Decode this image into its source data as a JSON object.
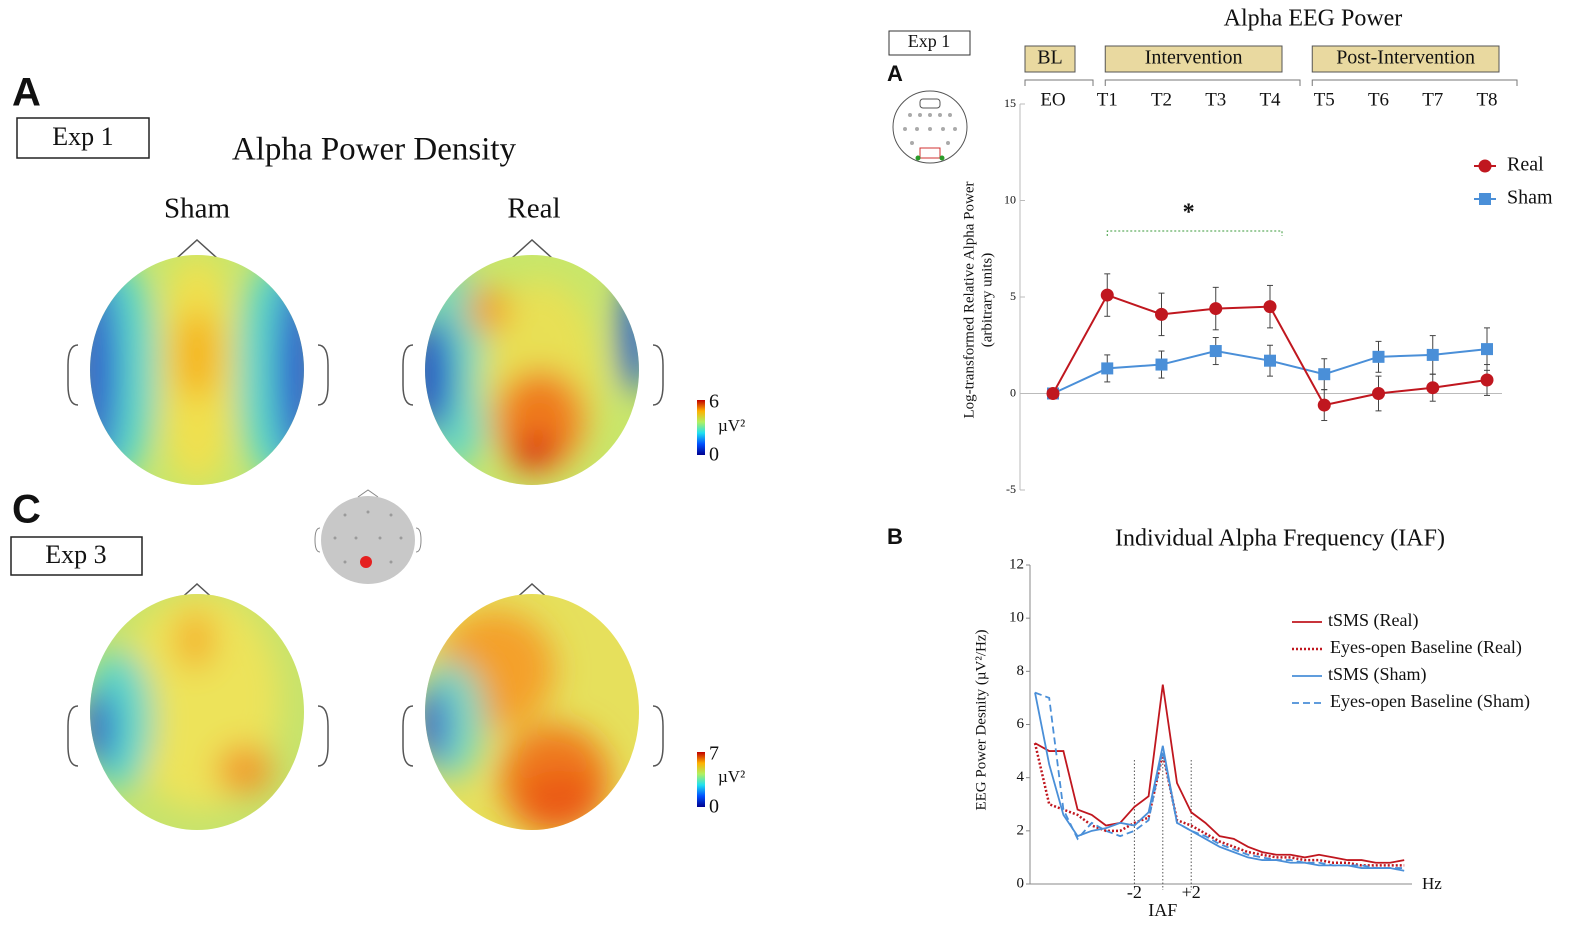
{
  "left": {
    "panel_a": "A",
    "exp1": "Exp 1",
    "title": "Alpha Power Density",
    "sham": "Sham",
    "real": "Real",
    "colorbar_a": {
      "max": "6",
      "unit": "µV²",
      "min": "0"
    },
    "panel_c": "C",
    "exp3": "Exp 3",
    "colorbar_c": {
      "max": "7",
      "unit": "µV²",
      "min": "0"
    }
  },
  "chart_data": [
    {
      "type": "line",
      "panel": "A",
      "exp": "Exp 1",
      "title": "Alpha EEG Power",
      "phases": [
        "BL",
        "Intervention",
        "Post-Intervention"
      ],
      "ylabel": [
        "Log-transformed Relative Alpha Power",
        "(arbitrary units)"
      ],
      "annotation": "*",
      "categories": [
        "EO",
        "T1",
        "T2",
        "T3",
        "T4",
        "T5",
        "T6",
        "T7",
        "T8"
      ],
      "series": [
        {
          "name": "Real",
          "color": "#c0171f",
          "marker": "circle",
          "values": [
            0,
            5.1,
            4.1,
            4.4,
            4.5,
            -0.6,
            0,
            0.3,
            0.7
          ],
          "errors": [
            0,
            1.1,
            1.1,
            1.1,
            1.1,
            0.8,
            0.9,
            0.7,
            0.8
          ]
        },
        {
          "name": "Sham",
          "color": "#4a8fd8",
          "marker": "square",
          "values": [
            0,
            1.3,
            1.5,
            2.2,
            1.7,
            1.0,
            1.9,
            2.0,
            2.3
          ],
          "errors": [
            0,
            0.7,
            0.7,
            0.7,
            0.8,
            0.8,
            0.8,
            1.0,
            1.1
          ]
        }
      ],
      "ylim": [
        -5,
        15
      ],
      "yticks": [
        -5,
        0,
        5,
        10,
        15
      ],
      "legend": "upper right"
    },
    {
      "type": "line",
      "panel": "B",
      "title": "Individual Alpha Frequency (IAF)",
      "ylabel": "EEG Power Desnity (µV²/Hz)",
      "xlabel": "Hz",
      "categories": [
        null,
        null,
        null,
        null,
        null,
        null,
        null,
        "-2",
        null,
        "IAF",
        null,
        "+2",
        null,
        null,
        null,
        null,
        null,
        null,
        null,
        null,
        null,
        null,
        null,
        null,
        null,
        null,
        null
      ],
      "series": [
        {
          "name": "tSMS (Real)",
          "color": "#c0171f",
          "style": "solid",
          "values": [
            5.3,
            5.0,
            5.0,
            2.8,
            2.6,
            2.2,
            2.3,
            2.9,
            3.3,
            7.5,
            3.8,
            2.7,
            2.3,
            1.8,
            1.7,
            1.4,
            1.2,
            1.1,
            1.1,
            1.0,
            1.1,
            1.0,
            0.9,
            0.9,
            0.8,
            0.8,
            0.9
          ]
        },
        {
          "name": "Eyes-open Baseline (Real)",
          "color": "#c0171f",
          "style": "dotted",
          "values": [
            5.3,
            3.0,
            2.8,
            2.6,
            2.2,
            2.0,
            2.0,
            2.3,
            2.5,
            4.9,
            2.4,
            2.2,
            1.9,
            1.6,
            1.4,
            1.2,
            1.1,
            1.0,
            1.0,
            0.9,
            0.9,
            0.8,
            0.8,
            0.7,
            0.7,
            0.7,
            0.7
          ]
        },
        {
          "name": "tSMS (Sham)",
          "color": "#4a8fd8",
          "style": "solid",
          "values": [
            7.2,
            4.5,
            2.6,
            1.8,
            2.0,
            2.1,
            2.3,
            2.2,
            2.7,
            5.2,
            2.3,
            2.0,
            1.7,
            1.4,
            1.2,
            1.0,
            0.9,
            0.9,
            0.8,
            0.8,
            0.7,
            0.7,
            0.7,
            0.6,
            0.6,
            0.6,
            0.5
          ]
        },
        {
          "name": "Eyes-open Baseline (Sham)",
          "color": "#4a8fd8",
          "style": "dashed",
          "values": [
            7.2,
            7.0,
            2.8,
            1.7,
            2.3,
            2.0,
            1.8,
            2.0,
            2.4,
            5.0,
            2.3,
            2.0,
            1.8,
            1.5,
            1.3,
            1.1,
            1.0,
            0.9,
            0.9,
            0.8,
            0.8,
            0.7,
            0.7,
            0.7,
            0.6,
            0.6,
            0.6
          ]
        }
      ],
      "ylim": [
        0,
        12
      ],
      "yticks": [
        0,
        2,
        4,
        6,
        8,
        10,
        12
      ],
      "legend": "upper right"
    }
  ]
}
